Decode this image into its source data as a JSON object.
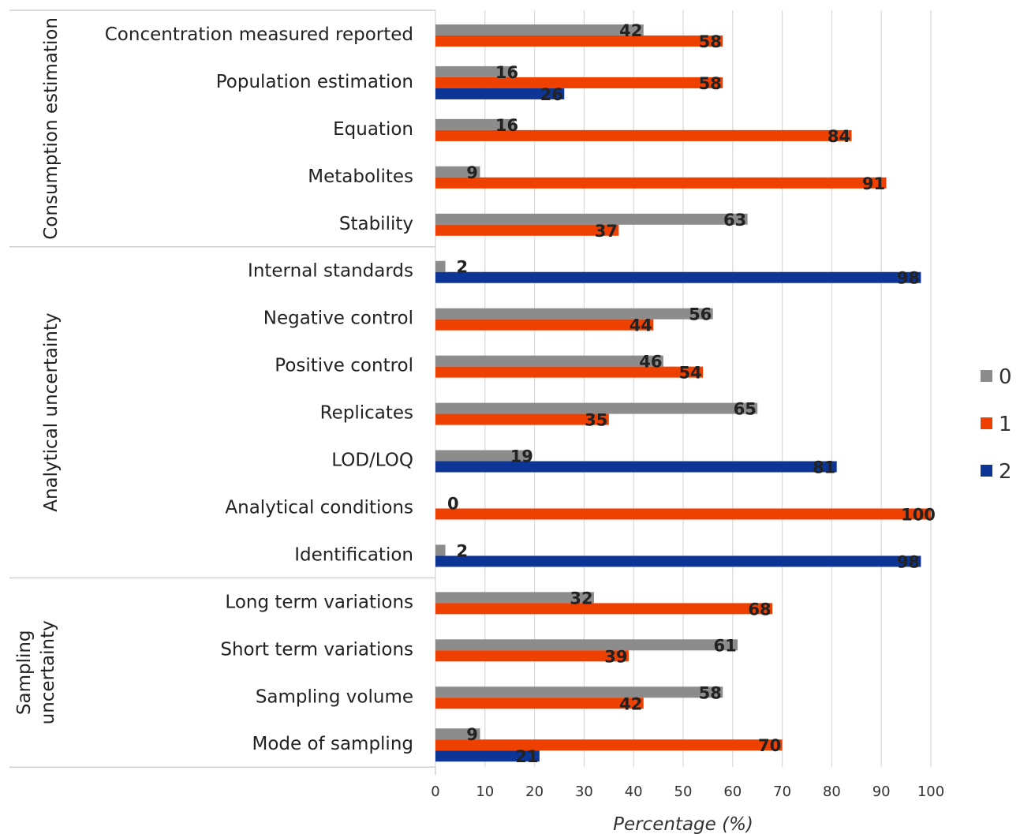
{
  "chart_data": {
    "type": "bar",
    "orientation": "horizontal",
    "xlabel": "Percentage (%)",
    "xlim": [
      0,
      100
    ],
    "xticks": [
      0,
      10,
      20,
      30,
      40,
      50,
      60,
      70,
      80,
      90,
      100
    ],
    "grid": true,
    "legend_position": "right",
    "series_colors": {
      "0": "#8c8c8c",
      "1": "#ee4000",
      "2": "#0d3596"
    },
    "legend": [
      {
        "name": "0",
        "color": "#8c8c8c"
      },
      {
        "name": "1",
        "color": "#ee4000"
      },
      {
        "name": "2",
        "color": "#0d3596"
      }
    ],
    "groups": [
      {
        "name": "Consumption estimation",
        "categories": [
          {
            "label": "Concentration measured reported",
            "values": {
              "0": 42,
              "1": 58
            }
          },
          {
            "label": "Population estimation",
            "values": {
              "0": 16,
              "1": 58,
              "2": 26
            }
          },
          {
            "label": "Equation",
            "values": {
              "0": 16,
              "1": 84
            }
          },
          {
            "label": "Metabolites",
            "values": {
              "0": 9,
              "1": 91
            }
          },
          {
            "label": "Stability",
            "values": {
              "0": 63,
              "1": 37
            }
          }
        ]
      },
      {
        "name": "Analytical uncertainty",
        "categories": [
          {
            "label": "Internal standards",
            "values": {
              "0": 2,
              "2": 98
            }
          },
          {
            "label": "Negative control",
            "values": {
              "0": 56,
              "1": 44
            }
          },
          {
            "label": "Positive control",
            "values": {
              "0": 46,
              "1": 54
            }
          },
          {
            "label": "Replicates",
            "values": {
              "0": 65,
              "1": 35
            }
          },
          {
            "label": "LOD/LOQ",
            "values": {
              "0": 19,
              "2": 81
            }
          },
          {
            "label": "Analytical conditions",
            "values": {
              "0": 0,
              "1": 100
            }
          },
          {
            "label": "Identification",
            "values": {
              "0": 2,
              "2": 98
            }
          }
        ]
      },
      {
        "name": "Sampling uncertainty",
        "name_lines": [
          "Sampling",
          "uncertainty"
        ],
        "categories": [
          {
            "label": "Long term variations",
            "values": {
              "0": 32,
              "1": 68
            }
          },
          {
            "label": "Short term variations",
            "values": {
              "0": 61,
              "1": 39
            }
          },
          {
            "label": "Sampling volume",
            "values": {
              "0": 58,
              "1": 42
            }
          },
          {
            "label": "Mode of sampling",
            "values": {
              "0": 9,
              "1": 70,
              "2": 21
            }
          }
        ]
      }
    ]
  }
}
